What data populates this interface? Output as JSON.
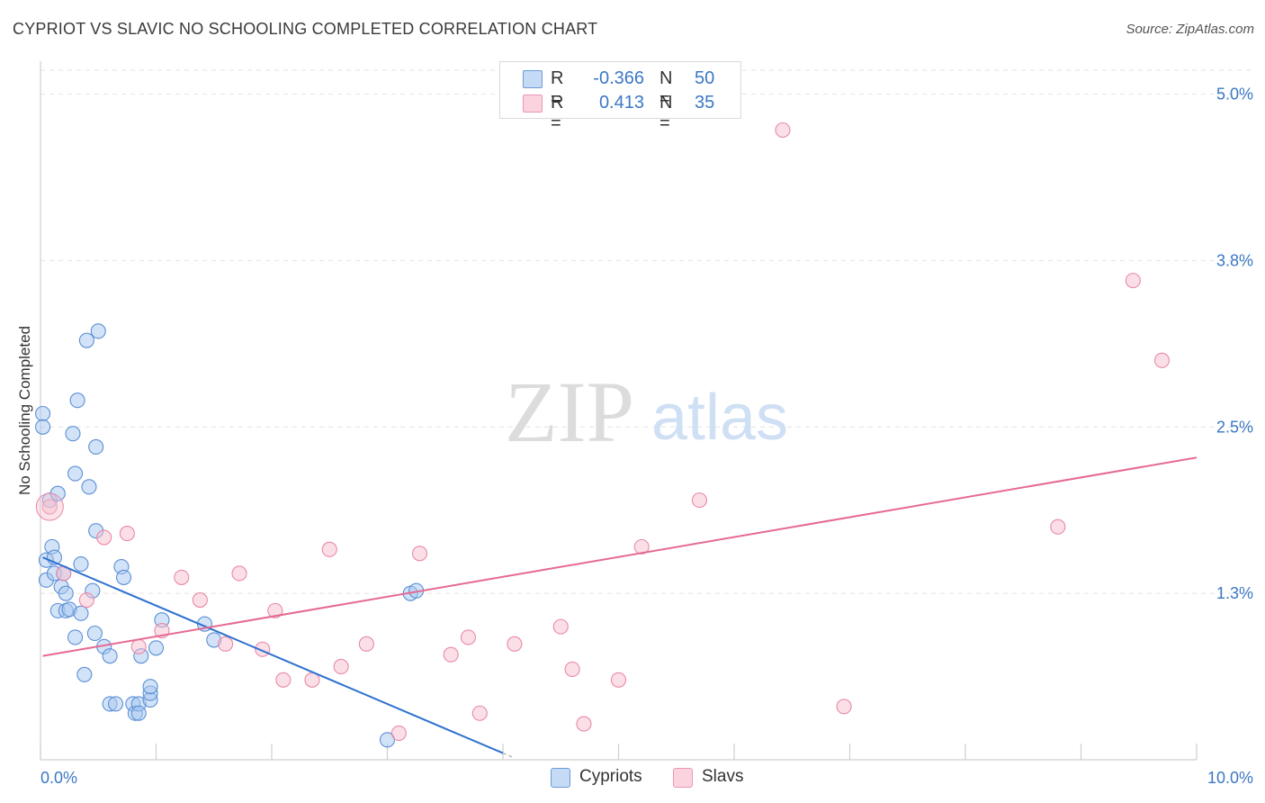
{
  "title": "CYPRIOT VS SLAVIC NO SCHOOLING COMPLETED CORRELATION CHART",
  "source": "Source: ZipAtlas.com",
  "watermark": {
    "zip": "ZIP",
    "atlas": "atlas"
  },
  "legend": {
    "rows": [
      {
        "r_label": "R =",
        "r_value": "-0.366",
        "n_label": "N =",
        "n_value": "50",
        "color": "#a8c8f0",
        "stroke": "#5b8fd6"
      },
      {
        "r_label": "R =",
        "r_value": "0.413",
        "n_label": "N =",
        "n_value": "35",
        "color": "#f7c0d0",
        "stroke": "#e889a8"
      }
    ]
  },
  "bottom_legend": [
    {
      "label": "Cypriots",
      "color": "#a8c8f0",
      "stroke": "#5b8fd6"
    },
    {
      "label": "Slavs",
      "color": "#f7c0d0",
      "stroke": "#e889a8"
    }
  ],
  "chart_data": {
    "type": "scatter",
    "title": "CYPRIOT VS SLAVIC NO SCHOOLING COMPLETED CORRELATION CHART",
    "xlabel": "",
    "ylabel": "No Schooling Completed",
    "xlim": [
      0,
      10
    ],
    "ylim": [
      0,
      5.2
    ],
    "x_tick_labels": [
      {
        "value": 0,
        "label": "0.0%"
      },
      {
        "value": 10,
        "label": "10.0%"
      }
    ],
    "y_ticks": [
      {
        "value": 1.25,
        "label": "1.3%"
      },
      {
        "value": 2.5,
        "label": "2.5%"
      },
      {
        "value": 3.75,
        "label": "3.8%"
      },
      {
        "value": 5.0,
        "label": "5.0%"
      }
    ],
    "series": [
      {
        "name": "Cypriots",
        "color": "#a8c8f0",
        "stroke": "#5b8fd6",
        "trend_color": "#2f72d0",
        "trend": {
          "x0": 0.02,
          "y0": 1.52,
          "x1": 4.0,
          "y1": 0.05,
          "dash_to_x": 4.1
        },
        "points": [
          [
            0.02,
            2.6
          ],
          [
            0.02,
            2.5
          ],
          [
            0.05,
            1.5
          ],
          [
            0.05,
            1.35
          ],
          [
            0.08,
            1.95
          ],
          [
            0.1,
            1.6
          ],
          [
            0.12,
            1.52
          ],
          [
            0.12,
            1.4
          ],
          [
            0.15,
            1.12
          ],
          [
            0.15,
            2.0
          ],
          [
            0.18,
            1.3
          ],
          [
            0.2,
            1.4
          ],
          [
            0.22,
            1.25
          ],
          [
            0.22,
            1.12
          ],
          [
            0.25,
            1.13
          ],
          [
            0.28,
            2.45
          ],
          [
            0.3,
            2.15
          ],
          [
            0.3,
            0.92
          ],
          [
            0.32,
            2.7
          ],
          [
            0.35,
            1.1
          ],
          [
            0.35,
            1.47
          ],
          [
            0.38,
            0.64
          ],
          [
            0.4,
            3.15
          ],
          [
            0.42,
            2.05
          ],
          [
            0.45,
            1.27
          ],
          [
            0.47,
            0.95
          ],
          [
            0.48,
            1.72
          ],
          [
            0.48,
            2.35
          ],
          [
            0.5,
            3.22
          ],
          [
            0.55,
            0.85
          ],
          [
            0.6,
            0.42
          ],
          [
            0.65,
            0.42
          ],
          [
            0.7,
            1.45
          ],
          [
            0.72,
            1.37
          ],
          [
            0.8,
            0.42
          ],
          [
            0.82,
            0.35
          ],
          [
            0.85,
            0.42
          ],
          [
            0.85,
            0.35
          ],
          [
            0.87,
            0.78
          ],
          [
            0.95,
            0.45
          ],
          [
            0.95,
            0.5
          ],
          [
            0.95,
            0.55
          ],
          [
            1.0,
            0.84
          ],
          [
            1.05,
            1.05
          ],
          [
            1.42,
            1.02
          ],
          [
            1.5,
            0.9
          ],
          [
            3.0,
            0.15
          ],
          [
            3.2,
            1.25
          ],
          [
            3.25,
            1.27
          ],
          [
            0.6,
            0.78
          ]
        ]
      },
      {
        "name": "Slavs",
        "color": "#f7c0d0",
        "stroke": "#e889a8",
        "trend_color": "#e56a91",
        "trend": {
          "x0": 0.02,
          "y0": 0.78,
          "x1": 10.0,
          "y1": 2.27
        },
        "points": [
          [
            0.08,
            1.9
          ],
          [
            0.2,
            1.4
          ],
          [
            0.4,
            1.2
          ],
          [
            0.55,
            1.67
          ],
          [
            0.75,
            1.7
          ],
          [
            0.85,
            0.85
          ],
          [
            1.05,
            0.97
          ],
          [
            1.22,
            1.37
          ],
          [
            1.38,
            1.2
          ],
          [
            1.6,
            0.87
          ],
          [
            1.72,
            1.4
          ],
          [
            1.92,
            0.83
          ],
          [
            2.03,
            1.12
          ],
          [
            2.1,
            0.6
          ],
          [
            2.35,
            0.6
          ],
          [
            2.5,
            1.58
          ],
          [
            2.6,
            0.7
          ],
          [
            2.82,
            0.87
          ],
          [
            3.1,
            0.2
          ],
          [
            3.28,
            1.55
          ],
          [
            3.55,
            0.79
          ],
          [
            3.7,
            0.92
          ],
          [
            3.8,
            0.35
          ],
          [
            4.1,
            0.87
          ],
          [
            4.5,
            1.0
          ],
          [
            4.6,
            0.68
          ],
          [
            4.7,
            0.27
          ],
          [
            5.0,
            0.6
          ],
          [
            5.2,
            1.6
          ],
          [
            5.7,
            1.95
          ],
          [
            6.42,
            4.73
          ],
          [
            6.95,
            0.4
          ],
          [
            8.8,
            1.75
          ],
          [
            9.45,
            3.6
          ],
          [
            9.7,
            3.0
          ]
        ]
      }
    ]
  }
}
